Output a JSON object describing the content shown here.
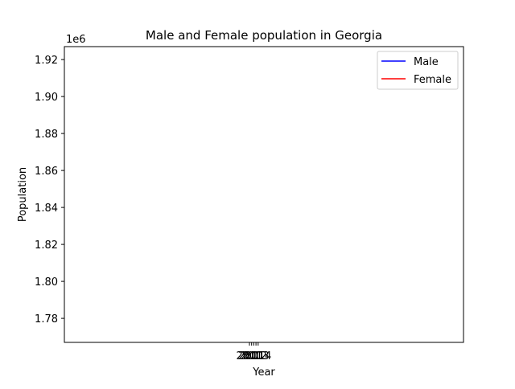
{
  "chart_data": {
    "type": "line",
    "title": "Male and Female population in Georgia",
    "xlabel": "Year",
    "ylabel": "Population",
    "y_offset_label": "1e6",
    "y_scale": 1000000,
    "ylim": [
      1.767,
      1.927
    ],
    "y_ticks": [
      1.78,
      1.8,
      1.82,
      1.84,
      1.86,
      1.88,
      1.9,
      1.92
    ],
    "y_tick_labels": [
      "1.78",
      "1.80",
      "1.82",
      "1.84",
      "1.86",
      "1.88",
      "1.90",
      "1.92"
    ],
    "x_ticks": [
      "2010",
      "2011",
      "2012",
      "2013",
      "2014"
    ],
    "x_tick_labels": [
      "2010",
      "2011",
      "2012",
      "2013",
      "2014"
    ],
    "xlim": [
      2008,
      2016
    ],
    "grid": false,
    "legend_position": "top-right",
    "series": [
      {
        "name": "Male",
        "color": "#0000ff",
        "values": []
      },
      {
        "name": "Female",
        "color": "#ff0000",
        "values": []
      }
    ]
  }
}
